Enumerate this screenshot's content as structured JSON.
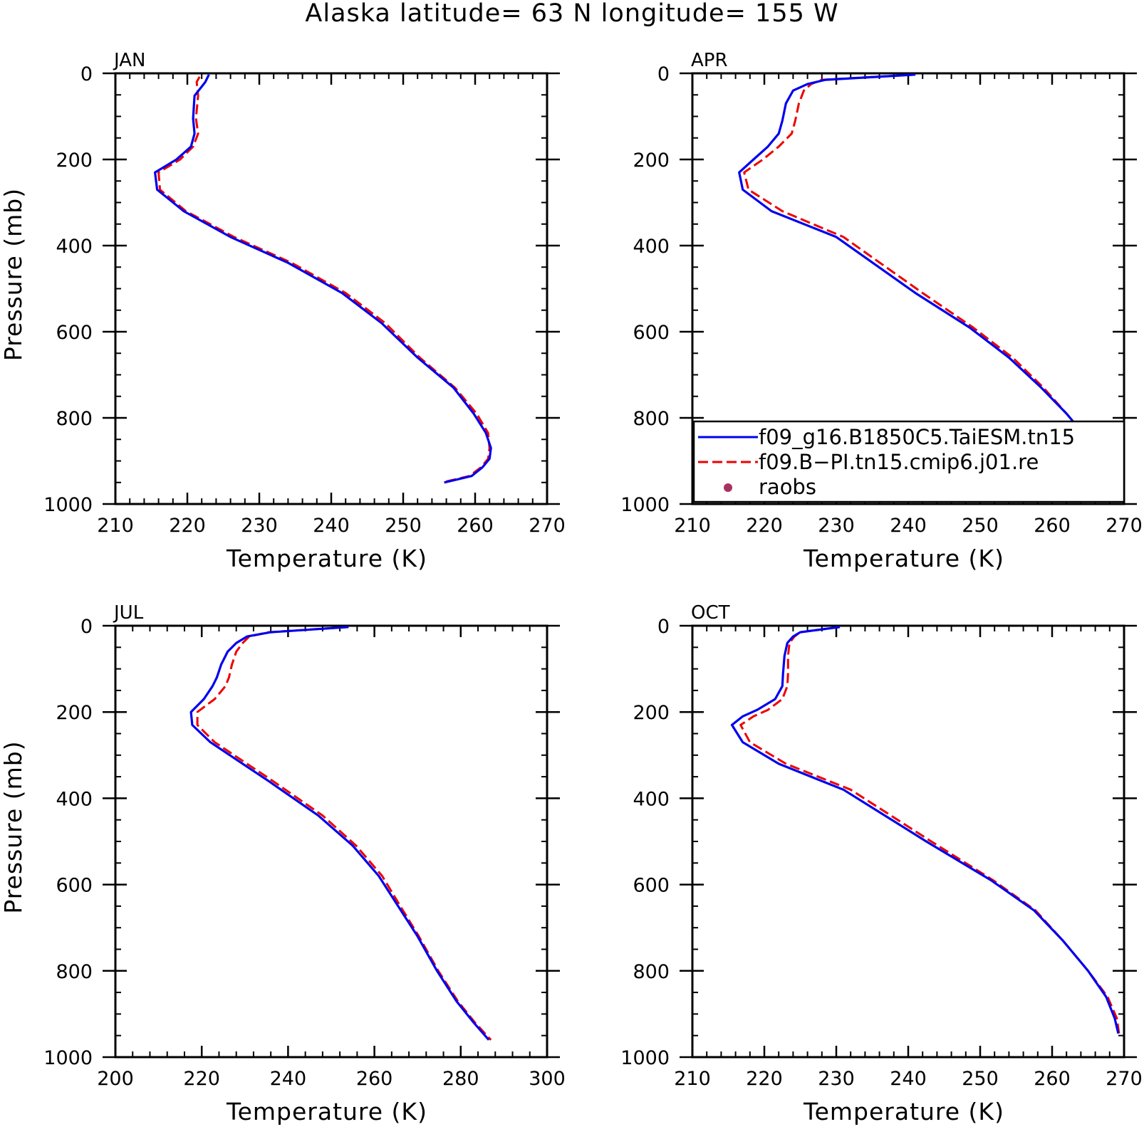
{
  "title": "Alaska  latitude= 63 N longitude= 155 W",
  "legend": [
    {
      "label": "f09_g16.B1850C5.TaiESM.tn15",
      "color": "#0000ee",
      "style": "solid"
    },
    {
      "label": "f09.B−PI.tn15.cmip6.j01.re",
      "color": "#ee0000",
      "style": "dashed"
    },
    {
      "label": "raobs",
      "color": "#a8325f",
      "style": "dot"
    }
  ],
  "chart_data": [
    {
      "type": "line",
      "panel": "JAN",
      "xlabel": "Temperature (K)",
      "ylabel": "Pressure (mb)",
      "xlim": [
        210,
        270
      ],
      "xticks": [
        210,
        220,
        230,
        240,
        250,
        260,
        270
      ],
      "ylim": [
        0,
        1000
      ],
      "yticks": [
        0,
        200,
        400,
        600,
        800,
        1000
      ],
      "yreversed": true,
      "series": [
        {
          "name": "f09_g16.B1850C5.TaiESM.tn15",
          "color": "#0000ee",
          "style": "solid",
          "x": [
            223.0,
            222.5,
            221.0,
            220.8,
            221.0,
            220.5,
            218.5,
            215.5,
            215.8,
            219.5,
            226.0,
            234.0,
            241.5,
            247.0,
            252.0,
            257.0,
            259.8,
            261.5,
            262.2,
            262.0,
            261.0,
            259.5,
            255.7
          ],
          "y": [
            3,
            20,
            52,
            105,
            140,
            170,
            200,
            230,
            270,
            320,
            380,
            440,
            510,
            580,
            660,
            730,
            790,
            835,
            870,
            895,
            915,
            935,
            950
          ]
        },
        {
          "name": "f09.B−PI.tn15.cmip6.j01.re",
          "color": "#ee0000",
          "style": "dashed",
          "x": [
            221.7,
            221.3,
            221.5,
            221.2,
            221.5,
            220.8,
            219.0,
            216.0,
            216.2,
            219.8,
            226.5,
            234.5,
            242.0,
            247.5,
            252.3,
            257.2,
            260.2,
            261.8,
            262.0,
            261.8,
            260.8,
            259.2,
            255.4
          ],
          "y": [
            8,
            20,
            52,
            105,
            140,
            170,
            200,
            230,
            270,
            320,
            380,
            440,
            510,
            580,
            660,
            730,
            790,
            835,
            870,
            895,
            915,
            935,
            950
          ]
        }
      ]
    },
    {
      "type": "line",
      "panel": "APR",
      "xlabel": "Temperature (K)",
      "ylabel": "",
      "xlim": [
        210,
        270
      ],
      "xticks": [
        210,
        220,
        230,
        240,
        250,
        260,
        270
      ],
      "ylim": [
        0,
        1000
      ],
      "yticks": [
        0,
        200,
        400,
        600,
        800,
        1000
      ],
      "yreversed": true,
      "series": [
        {
          "name": "f09_g16.B1850C5.TaiESM.tn15",
          "color": "#0000ee",
          "style": "solid",
          "x": [
            241.0,
            228.5,
            226.0,
            224.0,
            223.0,
            222.5,
            222.0,
            220.5,
            218.5,
            216.5,
            217.0,
            221.0,
            230.0,
            241.0,
            248.5,
            254.0,
            258.5,
            262.0,
            264.5,
            267.0,
            269.0,
            270.0
          ],
          "y": [
            3,
            15,
            25,
            40,
            70,
            110,
            140,
            170,
            200,
            230,
            270,
            320,
            380,
            510,
            590,
            660,
            730,
            790,
            840,
            890,
            930,
            950
          ]
        },
        {
          "name": "f09.B−PI.tn15.cmip6.j01.re",
          "color": "#ee0000",
          "style": "dashed",
          "x": [
            241.0,
            228.0,
            226.5,
            225.5,
            224.8,
            224.3,
            223.8,
            222.0,
            219.8,
            217.2,
            217.8,
            222.5,
            231.0,
            242.0,
            249.0,
            254.5,
            258.8,
            262.0,
            264.5,
            267.0,
            269.0,
            270.0
          ],
          "y": [
            3,
            15,
            25,
            40,
            70,
            110,
            140,
            170,
            200,
            230,
            270,
            320,
            380,
            510,
            590,
            660,
            730,
            790,
            840,
            890,
            930,
            950
          ]
        }
      ]
    },
    {
      "type": "line",
      "panel": "JUL",
      "xlabel": "Temperature (K)",
      "ylabel": "Pressure (mb)",
      "xlim": [
        200,
        300
      ],
      "xticks": [
        200,
        220,
        240,
        260,
        280,
        300
      ],
      "ylim": [
        0,
        1000
      ],
      "yticks": [
        0,
        200,
        400,
        600,
        800,
        1000
      ],
      "yreversed": true,
      "series": [
        {
          "name": "f09_g16.B1850C5.TaiESM.tn15",
          "color": "#0000ee",
          "style": "solid",
          "x": [
            254.0,
            236.0,
            230.5,
            228.0,
            226.0,
            224.5,
            223.5,
            222.5,
            220.5,
            217.5,
            217.8,
            222.0,
            228.0,
            235.5,
            247.0,
            255.0,
            261.0,
            265.5,
            270.0,
            274.5,
            279.0,
            283.0,
            286.5
          ],
          "y": [
            3,
            15,
            25,
            40,
            60,
            90,
            120,
            140,
            170,
            200,
            230,
            270,
            310,
            360,
            440,
            510,
            580,
            650,
            720,
            800,
            870,
            920,
            960
          ]
        },
        {
          "name": "f09.B−PI.tn15.cmip6.j01.re",
          "color": "#ee0000",
          "style": "dashed",
          "x": [
            254.0,
            235.5,
            231.0,
            229.5,
            228.0,
            227.0,
            226.3,
            225.5,
            223.0,
            219.0,
            219.0,
            223.0,
            229.0,
            236.5,
            248.0,
            255.8,
            261.8,
            266.0,
            270.3,
            274.8,
            279.3,
            283.3,
            287.0
          ],
          "y": [
            3,
            15,
            25,
            40,
            60,
            90,
            120,
            140,
            170,
            200,
            230,
            270,
            310,
            360,
            440,
            510,
            580,
            650,
            720,
            800,
            870,
            920,
            960
          ]
        }
      ]
    },
    {
      "type": "line",
      "panel": "OCT",
      "xlabel": "Temperature (K)",
      "ylabel": "",
      "xlim": [
        210,
        270
      ],
      "xticks": [
        210,
        220,
        230,
        240,
        250,
        260,
        270
      ],
      "ylim": [
        0,
        1000
      ],
      "yticks": [
        0,
        200,
        400,
        600,
        800,
        1000
      ],
      "yreversed": true,
      "series": [
        {
          "name": "f09_g16.B1850C5.TaiESM.tn15",
          "color": "#0000ee",
          "style": "solid",
          "x": [
            230.5,
            225.0,
            224.0,
            223.2,
            222.8,
            222.6,
            222.5,
            221.5,
            219.0,
            217.0,
            215.5,
            217.0,
            222.0,
            231.0,
            242.5,
            251.5,
            257.5,
            261.5,
            265.0,
            267.5,
            268.7,
            269.2
          ],
          "y": [
            3,
            15,
            25,
            40,
            70,
            110,
            140,
            170,
            195,
            210,
            230,
            270,
            320,
            380,
            500,
            590,
            660,
            730,
            800,
            860,
            910,
            945
          ]
        },
        {
          "name": "f09.B−PI.tn15.cmip6.j01.re",
          "color": "#ee0000",
          "style": "dashed",
          "x": [
            230.5,
            225.0,
            224.2,
            223.5,
            223.3,
            223.3,
            223.2,
            222.5,
            220.5,
            218.5,
            216.7,
            218.0,
            223.0,
            232.0,
            243.2,
            251.8,
            257.7,
            261.5,
            265.0,
            267.7,
            269.0,
            269.3
          ],
          "y": [
            3,
            15,
            25,
            40,
            70,
            110,
            140,
            170,
            195,
            210,
            230,
            270,
            320,
            380,
            500,
            590,
            660,
            730,
            800,
            860,
            910,
            945
          ]
        }
      ]
    }
  ]
}
